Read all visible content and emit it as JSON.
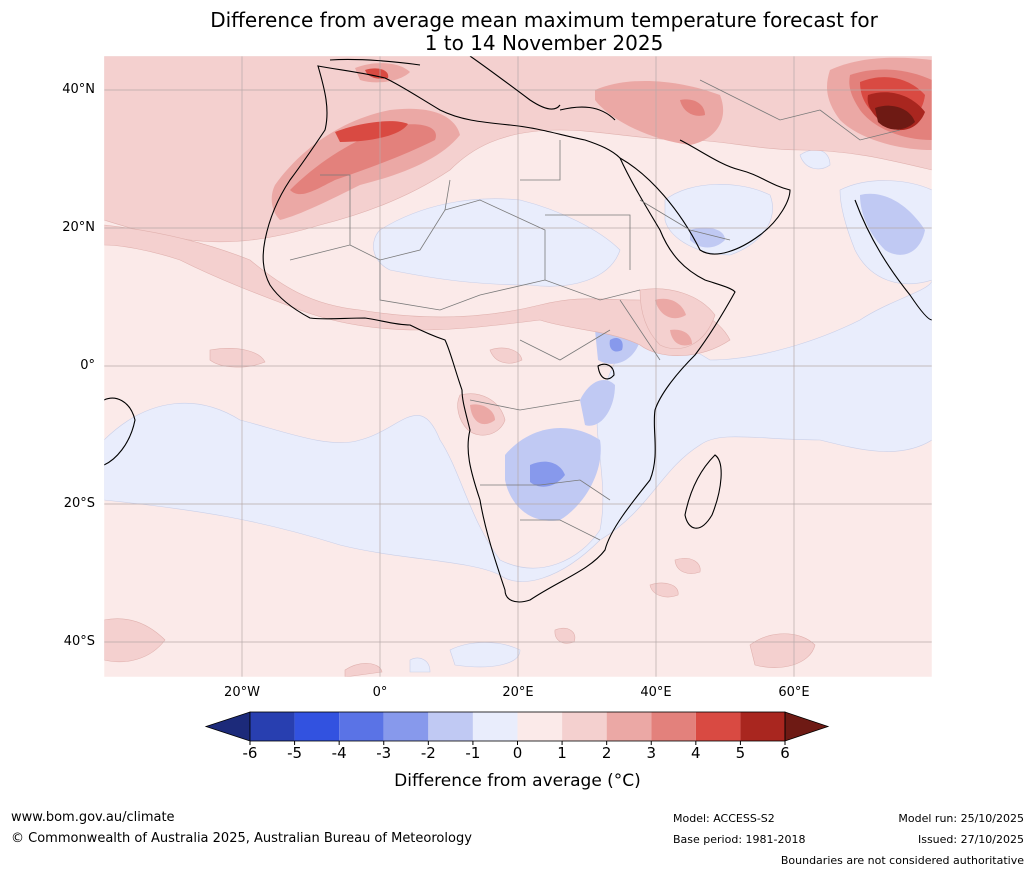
{
  "title": {
    "line1": "Difference from average mean maximum temperature forecast for",
    "line2": "1 to 14 November 2025"
  },
  "axes": {
    "lat_labels": [
      "40°N",
      "20°N",
      "0°",
      "20°S",
      "40°S"
    ],
    "lon_labels": [
      "20°W",
      "0°",
      "20°E",
      "40°E",
      "60°E"
    ]
  },
  "colorbar": {
    "ticks": [
      "-6",
      "-5",
      "-4",
      "-3",
      "-2",
      "-1",
      "0",
      "1",
      "2",
      "3",
      "4",
      "5",
      "6"
    ],
    "colors": [
      "#1c2a7a",
      "#283fb0",
      "#3252e0",
      "#5a73e6",
      "#8799ec",
      "#c0c9f3",
      "#e9edfc",
      "#fbeae9",
      "#f4d0cf",
      "#eba8a5",
      "#e3817c",
      "#d94a42",
      "#a9261f",
      "#6e1a14"
    ],
    "label": "Difference from average (°C)"
  },
  "footer": {
    "website": "www.bom.gov.au/climate",
    "copyright": "© Commonwealth of Australia 2025, Australian Bureau of Meteorology",
    "model": "Model: ACCESS-S2",
    "base_period": "Base period: 1981-2018",
    "model_run": "Model run: 25/10/2025",
    "issued": "Issued: 27/10/2025",
    "disclaimer": "Boundaries are not considered authoritative"
  }
}
